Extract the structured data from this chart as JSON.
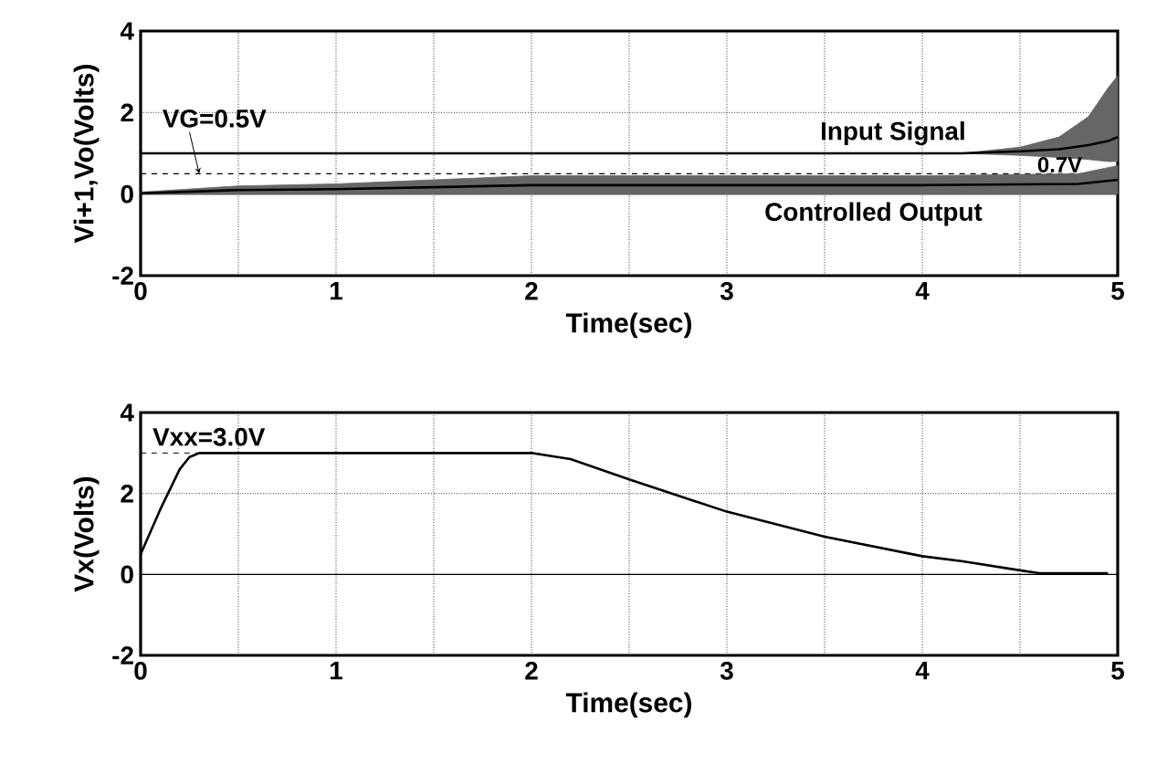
{
  "chart_data": [
    {
      "type": "line",
      "xlabel": "Time(sec)",
      "ylabel": "Vi+1,Vo(Volts)",
      "xlim": [
        0,
        5
      ],
      "ylim": [
        -2,
        4
      ],
      "xticks": [
        0,
        {
          "value": 0.5,
          "label": null
        },
        1,
        {
          "value": 1.5,
          "label": null
        },
        2,
        {
          "value": 2.5,
          "label": null
        },
        3,
        {
          "value": 3.5,
          "label": null
        },
        4,
        {
          "value": 4.5,
          "label": null
        },
        5
      ],
      "yticks": [
        -2,
        0,
        2,
        4
      ],
      "grid": true,
      "series": [
        {
          "name": "Input Signal",
          "color": "#000000",
          "x": [
            0,
            4.2,
            4.5,
            4.7,
            4.85,
            4.95,
            5
          ],
          "values": [
            1,
            1,
            1.05,
            1.1,
            1.2,
            1.3,
            1.4
          ],
          "lower": [
            1,
            1,
            0.95,
            0.9,
            0.85,
            0.8,
            0.8
          ],
          "upper": [
            1,
            1,
            1.15,
            1.4,
            1.9,
            2.6,
            2.9
          ]
        },
        {
          "name": "Controlled Output",
          "color": "#000000",
          "x": [
            0,
            0.5,
            1,
            2,
            3,
            4,
            4.8,
            5
          ],
          "values": [
            0.02,
            0.1,
            0.12,
            0.22,
            0.22,
            0.22,
            0.25,
            0.35
          ],
          "lower": [
            0,
            0,
            0,
            0,
            0,
            0,
            0,
            0
          ],
          "upper": [
            0.05,
            0.2,
            0.25,
            0.45,
            0.45,
            0.45,
            0.5,
            0.7
          ]
        }
      ],
      "ref_lines": [
        {
          "axis": "y",
          "value": 0,
          "color": "#000000",
          "line_style": "solid"
        },
        {
          "axis": "y",
          "value": 0.5,
          "label": "VG=0.5V",
          "color": "#000000",
          "line_style": "dashed"
        }
      ],
      "annotations": [
        {
          "text": "0.7V",
          "x": 4.9,
          "y": 0.7
        }
      ]
    },
    {
      "type": "line",
      "xlabel": "Time(sec)",
      "ylabel": "Vx(Volts)",
      "xlim": [
        0,
        5
      ],
      "ylim": [
        -2,
        4
      ],
      "xticks": [
        0,
        {
          "value": 0.5,
          "label": null
        },
        1,
        {
          "value": 1.5,
          "label": null
        },
        2,
        {
          "value": 2.5,
          "label": null
        },
        3,
        {
          "value": 3.5,
          "label": null
        },
        4,
        {
          "value": 4.5,
          "label": null
        },
        5
      ],
      "yticks": [
        -2,
        0,
        2,
        4
      ],
      "grid": true,
      "series": [
        {
          "color": "#000000",
          "x": [
            0,
            0.1,
            0.2,
            0.25,
            0.3,
            2.0,
            2.2,
            2.5,
            3.0,
            3.5,
            4.0,
            4.2,
            4.5,
            4.6,
            4.95
          ],
          "values": [
            0.5,
            1.6,
            2.6,
            2.9,
            3.0,
            3.0,
            2.85,
            2.35,
            1.55,
            0.93,
            0.45,
            0.33,
            0.1,
            0.03,
            0.03
          ]
        }
      ],
      "ref_lines": [
        {
          "axis": "y",
          "value": 0,
          "color": "#000000",
          "line_style": "solid"
        }
      ],
      "annotations": [
        {
          "text": "Vxx=3.0V",
          "x": 0.3,
          "y": 3.0
        }
      ]
    }
  ]
}
